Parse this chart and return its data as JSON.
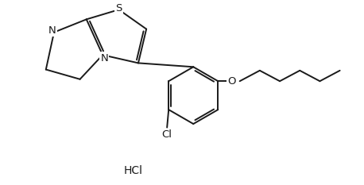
{
  "background_color": "#ffffff",
  "line_color": "#1a1a1a",
  "line_width": 1.4,
  "font_size_atoms": 9.5,
  "font_size_hcl": 10,
  "hcl_text": "HCl",
  "cl_text": "Cl",
  "n_text": "N",
  "s_text": "S",
  "o_text": "O",
  "xlim": [
    0,
    10
  ],
  "ylim": [
    0,
    5.5
  ]
}
